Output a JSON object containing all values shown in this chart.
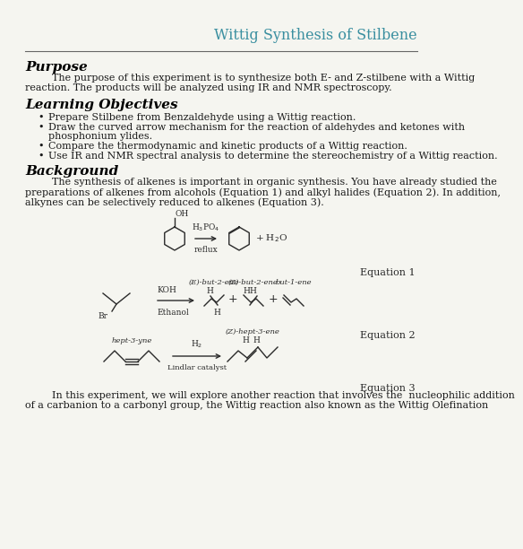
{
  "title": "Wittig Synthesis of Stilbene",
  "title_color": "#3a8fa0",
  "header_line_color": "#666666",
  "bg_color": "#f5f5f0",
  "section_color": "#000000",
  "body_color": "#1a1a1a",
  "purpose_heading": "Purpose",
  "purpose_line1": "The purpose of this experiment is to synthesize both E- and Z-stilbene with a Wittig",
  "purpose_line2": "reaction. The products will be analyzed using IR and NMR spectroscopy.",
  "objectives_heading": "Learning Objectives",
  "objectives": [
    "Prepare Stilbene from Benzaldehyde using a Wittig reaction.",
    [
      "Draw the curved arrow mechanism for the reaction of aldehydes and ketones with",
      "phosphonium ylides."
    ],
    "Compare the thermodynamic and kinetic products of a Wittig reaction.",
    "Use IR and NMR spectral analysis to determine the stereochemistry of a Wittig reaction."
  ],
  "background_heading": "Background",
  "background_lines": [
    "The synthesis of alkenes is important in organic synthesis. You have already studied the",
    "preparations of alkenes from alcohols (Equation 1) and alkyl halides (Equation 2). In addition,",
    "alkynes can be selectively reduced to alkenes (Equation 3)."
  ],
  "eq1_label": "Equation 1",
  "eq2_label": "Equation 2",
  "eq3_label": "Equation 3",
  "final_lines": [
    "In this experiment, we will explore another reaction that involves the  nucleophilic addition",
    "of a carbanion to a carbonyl group, the Wittig reaction also known as the Wittig Olefination"
  ]
}
